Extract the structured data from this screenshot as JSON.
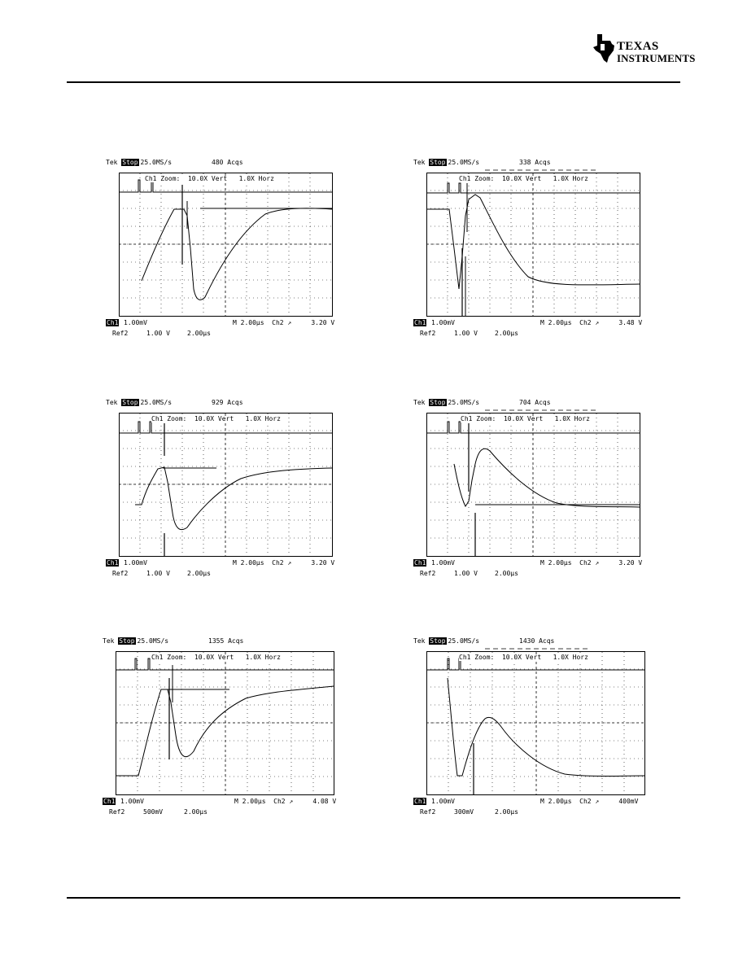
{
  "logo": {
    "line1": "TEXAS",
    "line2": "INSTRUMENTS"
  },
  "scopes": [
    {
      "tek": "Tek",
      "stop": "Stop",
      "rate": "25.0MS/s",
      "acqs": "480 Acqs",
      "zoom": "Ch1 Zoom:  10.0X Vert   1.0X Horz",
      "ch1": "Ch1",
      "ch1_scale": "1.00mV",
      "time_trig": "M 2.00µs  Ch2 ↗     3.20 V",
      "ref": "Ref2",
      "ref_volts": "1.00 V",
      "ref_time": "2.00µs"
    },
    {
      "tek": "Tek",
      "stop": "Stop",
      "rate": "25.0MS/s",
      "acqs": "338 Acqs",
      "zoom": "Ch1 Zoom:  10.0X Vert   1.0X Horz",
      "ch1": "Ch1",
      "ch1_scale": "1.00mV",
      "time_trig": "M 2.00µs  Ch2 ↗     3.48 V",
      "ref": "Ref2",
      "ref_volts": "1.00 V",
      "ref_time": "2.00µs"
    },
    {
      "tek": "Tek",
      "stop": "Stop",
      "rate": "25.0MS/s",
      "acqs": "929 Acqs",
      "zoom": "Ch1 Zoom:  10.0X Vert   1.0X Horz",
      "ch1": "Ch1",
      "ch1_scale": "1.00mV",
      "time_trig": "M 2.00µs  Ch2 ↗     3.20 V",
      "ref": "Ref2",
      "ref_volts": "1.00 V",
      "ref_time": "2.00µs"
    },
    {
      "tek": "Tek",
      "stop": "Stop",
      "rate": "25.0MS/s",
      "acqs": "704 Acqs",
      "zoom": "Ch1 Zoom:  10.0X Vert   1.0X Horz",
      "ch1": "Ch1",
      "ch1_scale": "1.00mV",
      "time_trig": "M 2.00µs  Ch2 ↗     3.20 V",
      "ref": "Ref2",
      "ref_volts": "1.00 V",
      "ref_time": "2.00µs"
    },
    {
      "tek": "Tek",
      "stop": "Stop",
      "rate": "25.0MS/s",
      "acqs": "1355 Acqs",
      "zoom": "Ch1 Zoom:  10.0X Vert   1.0X Horz",
      "ch1": "Ch1",
      "ch1_scale": "1.00mV",
      "time_trig": "M 2.00µs  Ch2 ↗     4.08 V",
      "ref": "Ref2",
      "ref_volts": "500mV",
      "ref_time": "2.00µs"
    },
    {
      "tek": "Tek",
      "stop": "Stop",
      "rate": "25.0MS/s",
      "acqs": "1430 Acqs",
      "zoom": "Ch1 Zoom:  10.0X Vert   1.0X Horz",
      "ch1": "Ch1",
      "ch1_scale": "1.00mV",
      "time_trig": "M 2.00µs  Ch2 ↗     400mV",
      "ref": "Ref2",
      "ref_volts": "300mV",
      "ref_time": "2.00µs"
    }
  ]
}
